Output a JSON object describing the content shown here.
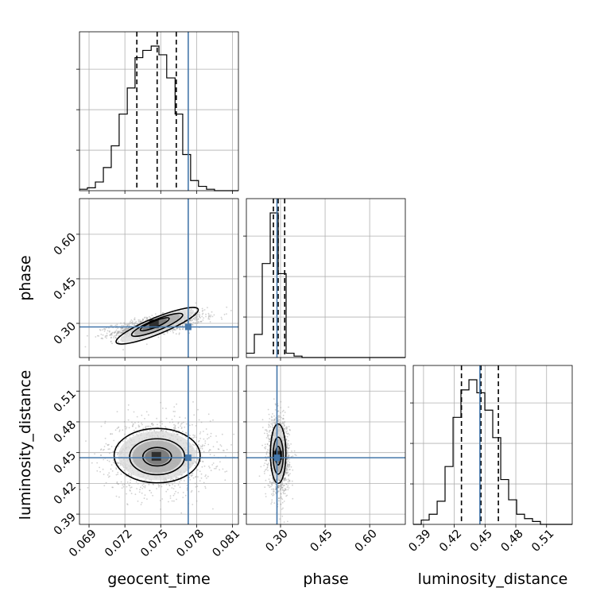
{
  "chart_data": {
    "type": "corner",
    "parameters": [
      "geocent_time",
      "phase",
      "luminosity_distance"
    ],
    "axis_labels": {
      "geocent_time": "geocent_time",
      "phase": "phase",
      "luminosity_distance": "luminosity_distance"
    },
    "ranges": {
      "geocent_time": [
        0.0682,
        0.0815
      ],
      "phase": [
        0.185,
        0.72
      ],
      "luminosity_distance": [
        0.38,
        0.535
      ]
    },
    "ticks": {
      "geocent_time": [
        "0.069",
        "0.072",
        "0.075",
        "0.078",
        "0.081"
      ],
      "phase": [
        "0.30",
        "0.45",
        "0.60"
      ],
      "luminosity_distance": [
        "0.39",
        "0.42",
        "0.45",
        "0.48",
        "0.51"
      ]
    },
    "truths": {
      "geocent_time": 0.0773,
      "phase": 0.288,
      "luminosity_distance": 0.445
    },
    "quantiles": {
      "geocent_time": [
        0.073,
        0.0747,
        0.0763
      ],
      "phase": [
        0.276,
        0.292,
        0.314
      ],
      "luminosity_distance": [
        0.427,
        0.446,
        0.463
      ]
    },
    "histograms": {
      "geocent_time": {
        "edges": [
          0.0682,
          0.06886,
          0.06953,
          0.0702,
          0.07086,
          0.07152,
          0.0722,
          0.07285,
          0.0735,
          0.0742,
          0.07485,
          0.0755,
          0.0762,
          0.07684,
          0.0775,
          0.07816,
          0.07883,
          0.0795,
          0.08015,
          0.0808,
          0.0815
        ],
        "counts": [
          1,
          2,
          6,
          16,
          31,
          53,
          71,
          92,
          97,
          100,
          94,
          78,
          53,
          25,
          7,
          3,
          1,
          0,
          0,
          0
        ]
      },
      "phase": {
        "edges": [
          0.185,
          0.2118,
          0.2385,
          0.2653,
          0.292,
          0.3188,
          0.3455,
          0.3723,
          0.399,
          0.4258,
          0.4525,
          0.4793,
          0.506,
          0.5328,
          0.5595,
          0.5863,
          0.613,
          0.6398,
          0.6665,
          0.6933,
          0.72
        ],
        "counts": [
          3,
          16,
          65,
          100,
          58,
          3,
          1,
          0,
          0,
          0,
          0,
          0,
          0,
          0,
          0,
          0,
          0,
          0,
          0,
          0
        ]
      },
      "luminosity_distance": {
        "edges": [
          0.38,
          0.3878,
          0.3955,
          0.4033,
          0.411,
          0.4188,
          0.4265,
          0.4343,
          0.442,
          0.4498,
          0.4575,
          0.4653,
          0.473,
          0.4808,
          0.4885,
          0.4963,
          0.504,
          0.5118,
          0.5195,
          0.5273,
          0.535
        ],
        "counts": [
          0,
          3,
          7,
          16,
          40,
          74,
          93,
          100,
          91,
          79,
          60,
          31,
          17,
          7,
          4,
          2,
          0,
          0,
          0,
          0
        ]
      }
    },
    "joint": {
      "phase_vs_geocent_time": {
        "x": "geocent_time",
        "y": "phase",
        "correlation": 0.65,
        "scatter_center": [
          0.0748,
          0.295
        ],
        "scatter_spread": [
          0.0019,
          0.02
        ],
        "contours": [
          {
            "level": "inner",
            "center": [
              0.0745,
              0.297
            ],
            "half_widths": [
              0.0013,
              0.0105
            ],
            "tilt": 0.018
          },
          {
            "level": "middle",
            "center": [
              0.0747,
              0.295
            ],
            "half_widths": [
              0.0023,
              0.0185
            ],
            "tilt": 0.018
          },
          {
            "level": "outer",
            "center": [
              0.0747,
              0.292
            ],
            "half_widths": [
              0.0037,
              0.028
            ],
            "tilt": 0.018
          }
        ]
      },
      "luminosity_distance_vs_geocent_time": {
        "x": "geocent_time",
        "y": "luminosity_distance",
        "correlation": 0.0,
        "scatter_center": [
          0.0748,
          0.447
        ],
        "scatter_spread": [
          0.0022,
          0.018
        ],
        "contours": [
          {
            "level": "inner",
            "center": [
              0.0747,
              0.446
            ],
            "half_widths": [
              0.0012,
              0.009
            ],
            "tilt": 0
          },
          {
            "level": "middle",
            "center": [
              0.0747,
              0.446
            ],
            "half_widths": [
              0.0023,
              0.0175
            ],
            "tilt": 0
          },
          {
            "level": "outer",
            "center": [
              0.0747,
              0.447
            ],
            "half_widths": [
              0.0036,
              0.0265
            ],
            "tilt": 0
          }
        ]
      },
      "luminosity_distance_vs_phase": {
        "x": "phase",
        "y": "luminosity_distance",
        "correlation": -0.1,
        "scatter_center": [
          0.294,
          0.447
        ],
        "scatter_spread": [
          0.018,
          0.018
        ],
        "contours": [
          {
            "level": "inner",
            "center": [
              0.292,
              0.447
            ],
            "half_widths": [
              0.009,
              0.009
            ],
            "tilt": 0
          },
          {
            "level": "middle",
            "center": [
              0.292,
              0.447
            ],
            "half_widths": [
              0.017,
              0.018
            ],
            "tilt": 0
          },
          {
            "level": "outer",
            "center": [
              0.292,
              0.449
            ],
            "half_widths": [
              0.026,
              0.029
            ],
            "tilt": 0
          }
        ]
      }
    },
    "grid": true,
    "colors": {
      "truth": "#4477aa",
      "histogram": "#000000",
      "quantile": "#000000",
      "scatter": "#999999",
      "grid": "#b0b0b0"
    }
  }
}
